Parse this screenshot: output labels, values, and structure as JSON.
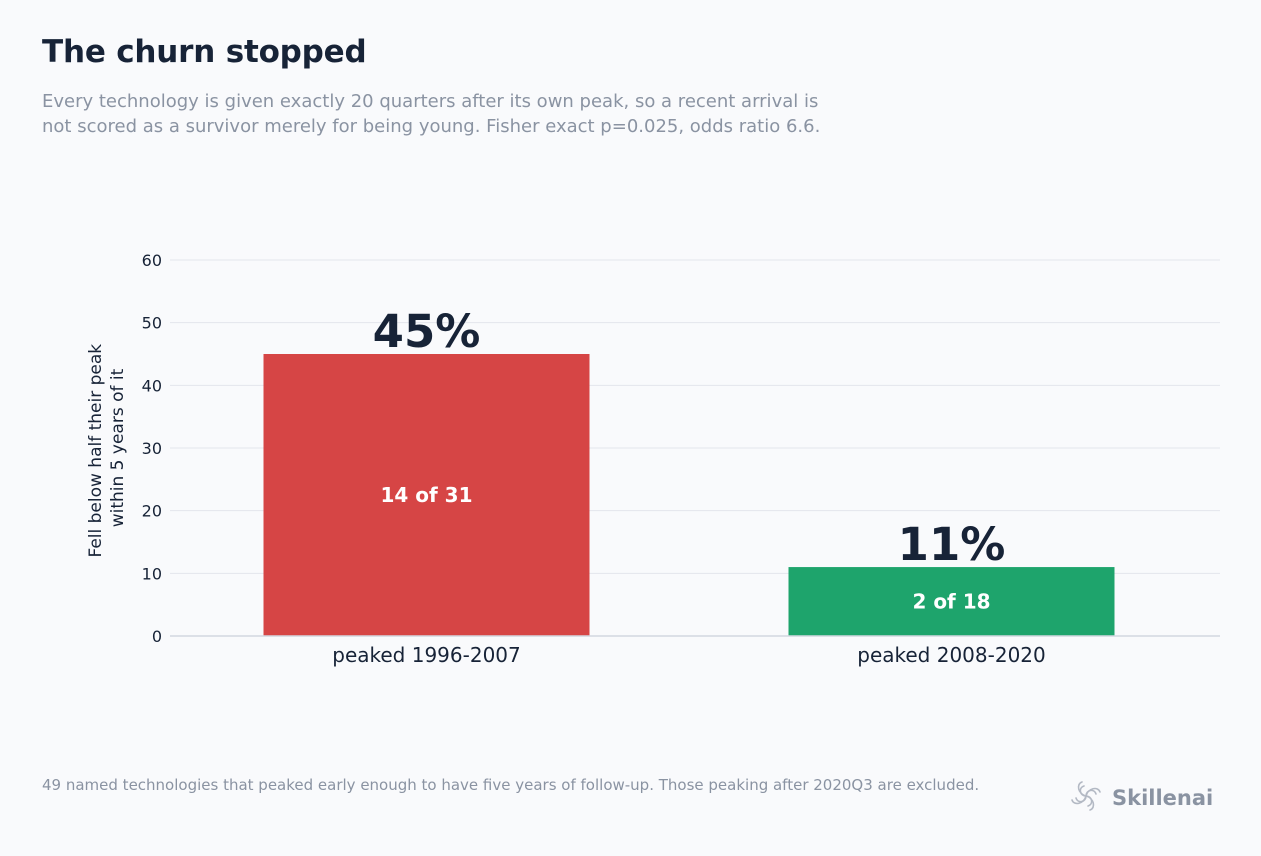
{
  "header": {
    "title": "The churn stopped",
    "subtitle": "Every technology is given exactly 20 quarters after its own peak, so a recent arrival is not scored as a survivor merely for being young. Fisher exact p=0.025, odds ratio 6.6."
  },
  "footer": {
    "note": "49 named technologies that peaked early enough to have five years of follow-up. Those peaking after 2020Q3 are excluded.",
    "brand": "Skillenai",
    "brand_icon": "spiral-logo-icon"
  },
  "colors": {
    "bar_early": "#d64545",
    "bar_late": "#1ea46c",
    "grid": "#e3e6ec",
    "text_dark": "#172337",
    "text_muted": "#8a93a2"
  },
  "chart_data": {
    "type": "bar",
    "categories": [
      "peaked 1996-2007",
      "peaked 2008-2020"
    ],
    "values": [
      45,
      11
    ],
    "value_labels": [
      "45%",
      "11%"
    ],
    "inner_labels": [
      "14 of 31",
      "2 of 18"
    ],
    "ylabel": "Fell below half their peak within 5 years of it",
    "ylabel_lines": [
      "Fell below half their peak",
      "within 5 years of it"
    ],
    "ylim": [
      0,
      60
    ],
    "yticks": [
      0,
      10,
      20,
      30,
      40,
      50,
      60
    ],
    "grid": true,
    "legend": "none"
  }
}
